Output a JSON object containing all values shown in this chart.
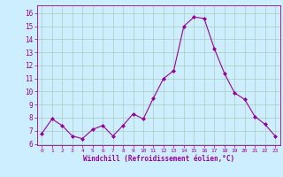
{
  "x": [
    0,
    1,
    2,
    3,
    4,
    5,
    6,
    7,
    8,
    9,
    10,
    11,
    12,
    13,
    14,
    15,
    16,
    17,
    18,
    19,
    20,
    21,
    22,
    23
  ],
  "y": [
    6.8,
    7.9,
    7.4,
    6.6,
    6.4,
    7.1,
    7.4,
    6.6,
    7.4,
    8.3,
    7.9,
    9.5,
    11.0,
    11.6,
    15.0,
    15.7,
    15.6,
    13.3,
    11.4,
    9.9,
    9.4,
    8.1,
    7.5,
    6.6
  ],
  "line_color": "#990099",
  "marker": "D",
  "marker_size": 2,
  "bg_color": "#cceeff",
  "grid_color": "#aaccbb",
  "xlabel": "Windchill (Refroidissement éolien,°C)",
  "xlabel_color": "#990099",
  "tick_color": "#990099",
  "ylabel_ticks": [
    6,
    7,
    8,
    9,
    10,
    11,
    12,
    13,
    14,
    15,
    16
  ],
  "xlim": [
    -0.5,
    23.5
  ],
  "ylim": [
    5.9,
    16.6
  ],
  "xticks": [
    0,
    1,
    2,
    3,
    4,
    5,
    6,
    7,
    8,
    9,
    10,
    11,
    12,
    13,
    14,
    15,
    16,
    17,
    18,
    19,
    20,
    21,
    22,
    23
  ]
}
